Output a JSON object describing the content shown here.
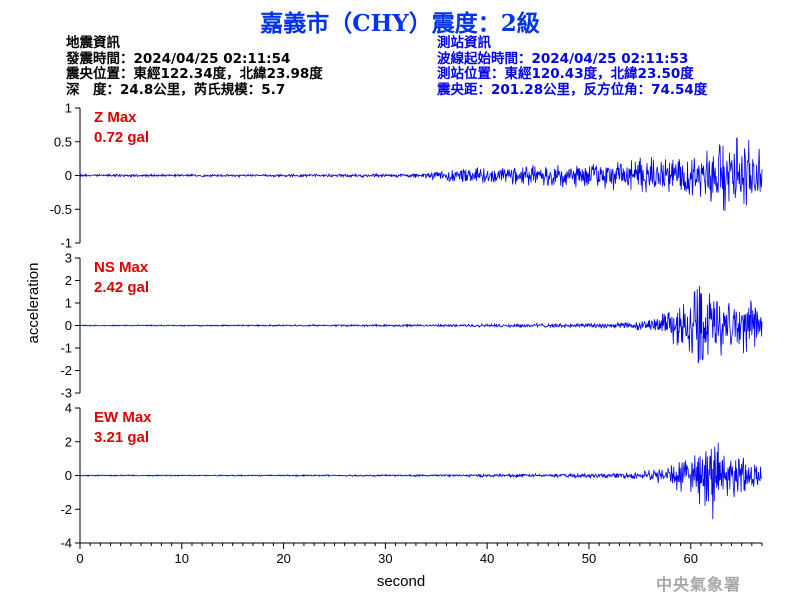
{
  "header": {
    "title": "嘉義市（CHY）震度：2級"
  },
  "quake_info": {
    "heading": "地震資訊",
    "time": "發震時間：2024/04/25 02:11:54",
    "epicenter": "震央位置：東經122.34度，北緯23.98度",
    "depth_magnitude": "深　度：24.8公里，芮氏規模：5.7"
  },
  "station_info": {
    "heading": "測站資訊",
    "wave_start": "波線起始時間：2024/04/25 02:11:53",
    "location": "測站位置：東經120.43度，北緯23.50度",
    "distance_azimuth": "震央距：201.28公里，反方位角：74.54度"
  },
  "footer": {
    "agency": "中央氣象署"
  },
  "chart_data": {
    "type": "line",
    "xlabel": "second",
    "ylabel": "acceleration",
    "xlim": [
      0,
      67
    ],
    "x_ticks": [
      0,
      10,
      20,
      30,
      40,
      50,
      60
    ],
    "colors": {
      "trace": "#0000ee",
      "max_label": "#dd0000",
      "axis": "#000000"
    },
    "panels": [
      {
        "name": "Z",
        "max_label": "Z Max",
        "max_value": "0.72 gal",
        "ylim": [
          -1,
          1
        ],
        "y_ticks": [
          -1,
          -0.5,
          0,
          0.5,
          1
        ],
        "y_tick_labels": [
          "-1",
          "-0.5",
          "0",
          "0.5",
          "1"
        ],
        "envelope": {
          "t": [
            0,
            10,
            20,
            30,
            34,
            35,
            38,
            42,
            45,
            48,
            50,
            52,
            55,
            58,
            60,
            62,
            64,
            65,
            66,
            67
          ],
          "amp": [
            0.02,
            0.02,
            0.02,
            0.03,
            0.04,
            0.08,
            0.12,
            0.14,
            0.18,
            0.2,
            0.22,
            0.25,
            0.28,
            0.3,
            0.35,
            0.5,
            0.6,
            0.72,
            0.55,
            0.35
          ]
        }
      },
      {
        "name": "NS",
        "max_label": "NS Max",
        "max_value": "2.42 gal",
        "ylim": [
          -3,
          3
        ],
        "y_ticks": [
          -3,
          -2,
          -1,
          0,
          1,
          2,
          3
        ],
        "y_tick_labels": [
          "-3",
          "-2",
          "-1",
          "0",
          "1",
          "2",
          "3"
        ],
        "envelope": {
          "t": [
            0,
            10,
            20,
            30,
            35,
            40,
            45,
            50,
            54,
            56,
            58,
            59,
            60,
            61,
            62,
            63,
            64,
            65,
            66,
            67
          ],
          "amp": [
            0.03,
            0.03,
            0.04,
            0.05,
            0.06,
            0.08,
            0.1,
            0.14,
            0.2,
            0.35,
            0.8,
            1.2,
            1.6,
            2.42,
            1.6,
            1.4,
            1.3,
            1.5,
            1.2,
            0.8
          ]
        }
      },
      {
        "name": "EW",
        "max_label": "EW Max",
        "max_value": "3.21 gal",
        "ylim": [
          -4,
          4
        ],
        "y_ticks": [
          -4,
          -2,
          0,
          2,
          4
        ],
        "y_tick_labels": [
          "-4",
          "-2",
          "0",
          "2",
          "4"
        ],
        "envelope": {
          "t": [
            0,
            10,
            20,
            30,
            35,
            40,
            45,
            50,
            54,
            56,
            58,
            59,
            60,
            61,
            62,
            63,
            64,
            65,
            66,
            67
          ],
          "amp": [
            0.04,
            0.04,
            0.05,
            0.06,
            0.07,
            0.1,
            0.12,
            0.15,
            0.2,
            0.35,
            0.8,
            1.2,
            1.4,
            1.8,
            3.21,
            1.6,
            1.4,
            1.3,
            1.0,
            0.7
          ]
        }
      }
    ]
  }
}
